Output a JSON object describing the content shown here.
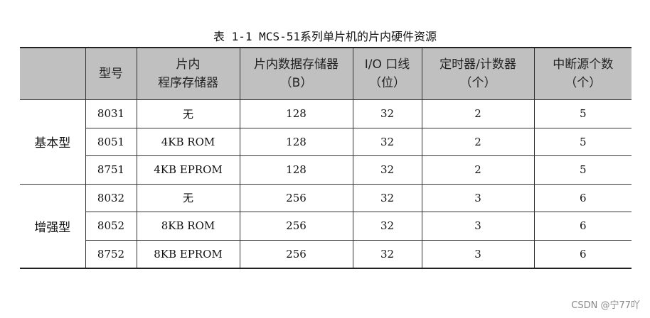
{
  "caption": "表 1-1   MCS-51系列单片机的片内硬件资源",
  "headers": {
    "model": "型号",
    "prog_l1": "片内",
    "prog_l2": "程序存储器",
    "data_l1": "片内数据存储器",
    "data_l2": "（B）",
    "io_l1": "I/O 口线",
    "io_l2": "（位）",
    "timer_l1": "定时器/计数器",
    "timer_l2": "（个）",
    "int_l1": "中断源个数",
    "int_l2": "（个）"
  },
  "groups": [
    "基本型",
    "增强型"
  ],
  "rows": [
    {
      "model": "8031",
      "prog": "无",
      "data": "128",
      "io": "32",
      "timer": "2",
      "int": "5"
    },
    {
      "model": "8051",
      "prog": "4KB ROM",
      "data": "128",
      "io": "32",
      "timer": "2",
      "int": "5"
    },
    {
      "model": "8751",
      "prog": "4KB EPROM",
      "data": "128",
      "io": "32",
      "timer": "2",
      "int": "5"
    },
    {
      "model": "8032",
      "prog": "无",
      "data": "256",
      "io": "32",
      "timer": "3",
      "int": "6"
    },
    {
      "model": "8052",
      "prog": "8KB ROM",
      "data": "256",
      "io": "32",
      "timer": "3",
      "int": "6"
    },
    {
      "model": "8752",
      "prog": "8KB EPROM",
      "data": "256",
      "io": "32",
      "timer": "3",
      "int": "6"
    }
  ],
  "watermark": "CSDN @宁77吖"
}
